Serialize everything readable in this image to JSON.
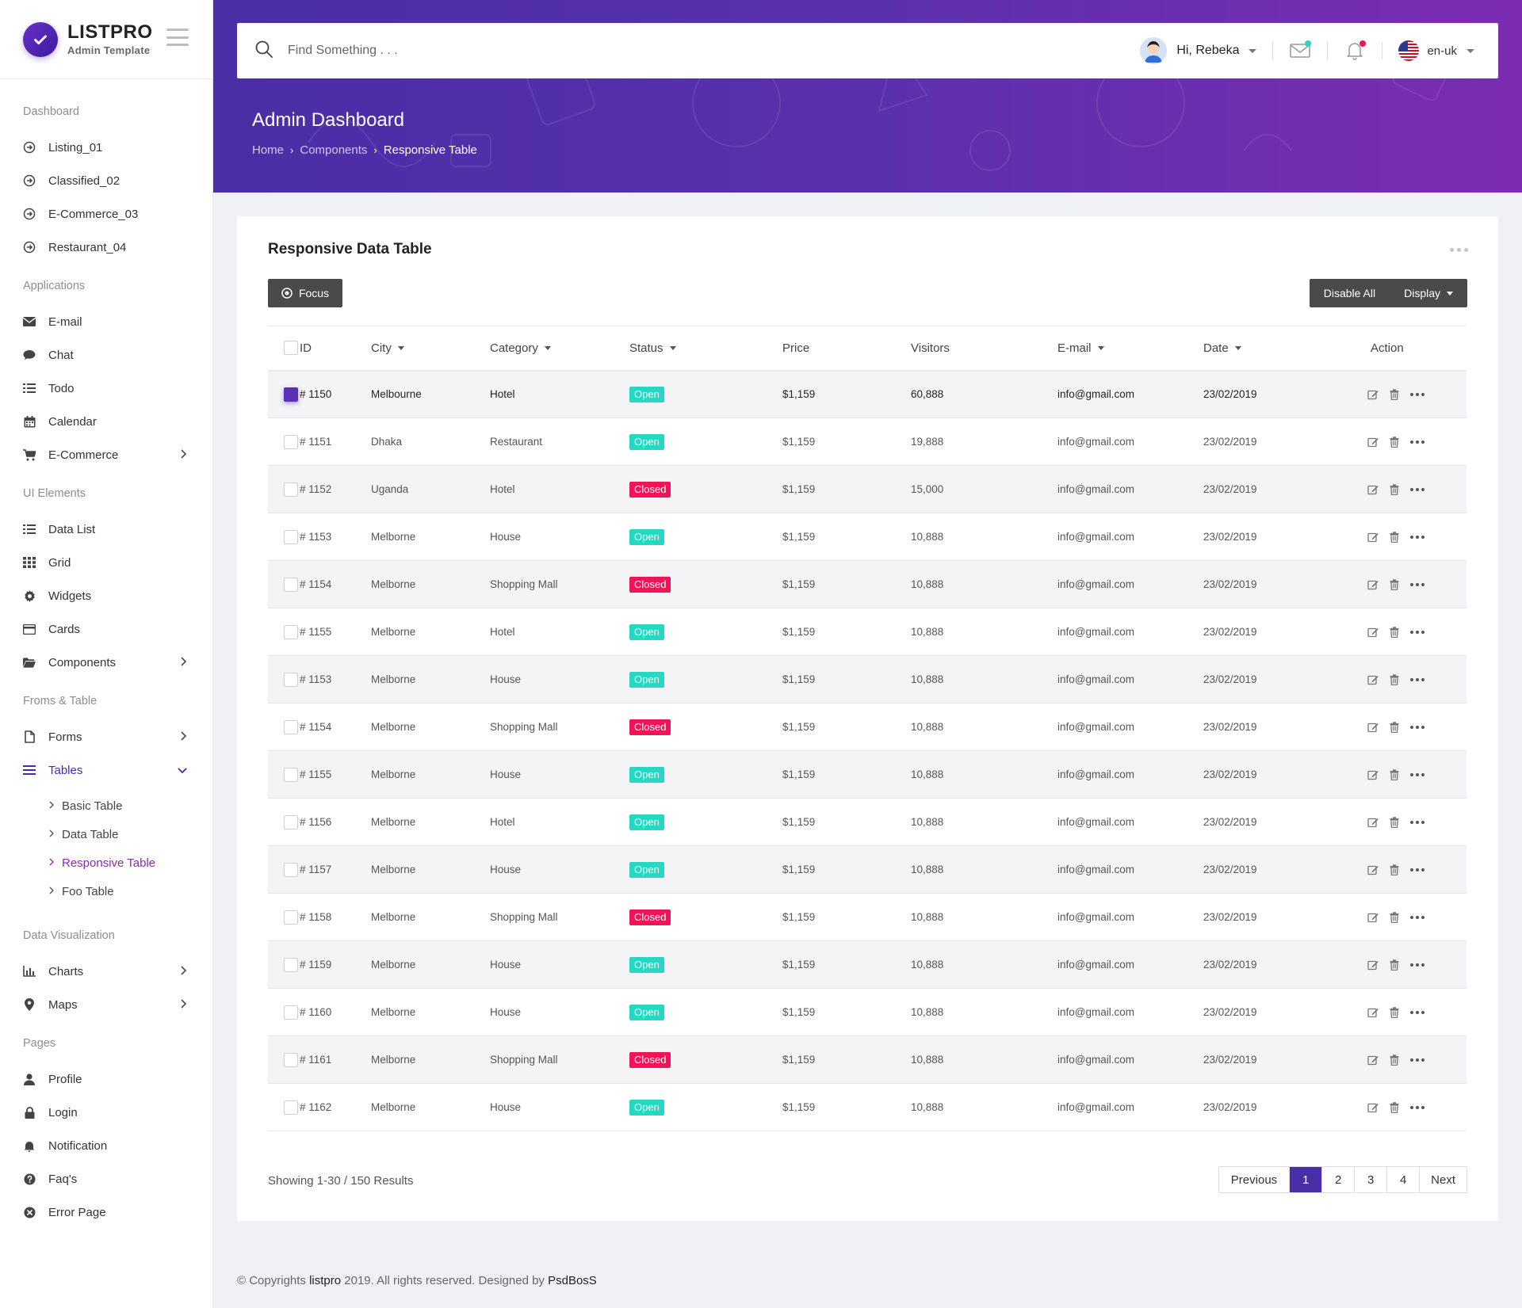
{
  "brand": {
    "name": "LISTPRO",
    "subtitle": "Admin Template"
  },
  "sidebar": {
    "sections": [
      {
        "title": "Dashboard",
        "items": [
          {
            "label": "Listing_01",
            "icon": "arrow-circle-icon"
          },
          {
            "label": "Classified_02",
            "icon": "arrow-circle-icon"
          },
          {
            "label": "E-Commerce_03",
            "icon": "arrow-circle-icon"
          },
          {
            "label": "Restaurant_04",
            "icon": "arrow-circle-icon"
          }
        ]
      },
      {
        "title": "Applications",
        "items": [
          {
            "label": "E-mail",
            "icon": "envelope-icon"
          },
          {
            "label": "Chat",
            "icon": "chat-bubble-icon"
          },
          {
            "label": "Todo",
            "icon": "list-icon"
          },
          {
            "label": "Calendar",
            "icon": "calendar-icon"
          },
          {
            "label": "E-Commerce",
            "icon": "cart-icon",
            "has_children": true
          }
        ]
      },
      {
        "title": "UI Elements",
        "items": [
          {
            "label": "Data List",
            "icon": "list-icon"
          },
          {
            "label": "Grid",
            "icon": "grid-icon"
          },
          {
            "label": "Widgets",
            "icon": "gear-icon"
          },
          {
            "label": "Cards",
            "icon": "card-icon"
          },
          {
            "label": "Components",
            "icon": "folder-icon",
            "has_children": true
          }
        ]
      },
      {
        "title": "Froms & Table",
        "items": [
          {
            "label": "Forms",
            "icon": "file-icon",
            "has_children": true
          },
          {
            "label": "Tables",
            "icon": "menu-icon",
            "has_children": true,
            "expanded": true,
            "active": true,
            "children": [
              "Basic Table",
              "Data Table",
              "Responsive Table",
              "Foo Table"
            ],
            "active_child": "Responsive Table"
          }
        ]
      },
      {
        "title": "Data Visualization",
        "items": [
          {
            "label": "Charts",
            "icon": "bar-chart-icon",
            "has_children": true
          },
          {
            "label": "Maps",
            "icon": "map-pin-icon",
            "has_children": true
          }
        ]
      },
      {
        "title": "Pages",
        "items": [
          {
            "label": "Profile",
            "icon": "user-icon"
          },
          {
            "label": "Login",
            "icon": "lock-icon"
          },
          {
            "label": "Notification",
            "icon": "bell-icon"
          },
          {
            "label": "Faq's",
            "icon": "question-circle-icon"
          },
          {
            "label": "Error Page",
            "icon": "close-circle-icon"
          }
        ]
      }
    ]
  },
  "topbar": {
    "search_placeholder": "Find Something . . .",
    "user_greeting": "Hi, Rebeka",
    "language": "en-uk",
    "mail_dot_color": "#26d7c4",
    "bell_dot_color": "#ef1458"
  },
  "header": {
    "title": "Admin Dashboard",
    "breadcrumb": [
      "Home",
      "Components",
      "Responsive Table"
    ],
    "gradient_start": "#4a2ea6",
    "gradient_end": "#7c2cb2"
  },
  "card": {
    "title": "Responsive Data Table",
    "focus_button": "Focus",
    "disable_all_button": "Disable All",
    "display_button": "Display"
  },
  "table": {
    "columns": [
      "ID",
      "City",
      "Category",
      "Status",
      "Price",
      "Visitors",
      "E-mail",
      "Date",
      "Action"
    ],
    "rows": [
      {
        "id": "# 1150",
        "city": "Melbourne",
        "category": "Hotel",
        "status": "Open",
        "price": "$1,159",
        "visitors": "60,888",
        "email": "info@gmail.com",
        "date": "23/02/2019",
        "checked": true
      },
      {
        "id": "# 1151",
        "city": "Dhaka",
        "category": "Restaurant",
        "status": "Open",
        "price": "$1,159",
        "visitors": "19,888",
        "email": "info@gmail.com",
        "date": "23/02/2019"
      },
      {
        "id": "# 1152",
        "city": "Uganda",
        "category": "Hotel",
        "status": "Closed",
        "price": "$1,159",
        "visitors": "15,000",
        "email": "info@gmail.com",
        "date": "23/02/2019"
      },
      {
        "id": "# 1153",
        "city": "Melborne",
        "category": "House",
        "status": "Open",
        "price": "$1,159",
        "visitors": "10,888",
        "email": "info@gmail.com",
        "date": "23/02/2019"
      },
      {
        "id": "# 1154",
        "city": "Melborne",
        "category": "Shopping Mall",
        "status": "Closed",
        "price": "$1,159",
        "visitors": "10,888",
        "email": "info@gmail.com",
        "date": "23/02/2019"
      },
      {
        "id": "# 1155",
        "city": "Melborne",
        "category": "Hotel",
        "status": "Open",
        "price": "$1,159",
        "visitors": "10,888",
        "email": "info@gmail.com",
        "date": "23/02/2019"
      },
      {
        "id": "# 1153",
        "city": "Melborne",
        "category": "House",
        "status": "Open",
        "price": "$1,159",
        "visitors": "10,888",
        "email": "info@gmail.com",
        "date": "23/02/2019"
      },
      {
        "id": "# 1154",
        "city": "Melborne",
        "category": "Shopping Mall",
        "status": "Closed",
        "price": "$1,159",
        "visitors": "10,888",
        "email": "info@gmail.com",
        "date": "23/02/2019"
      },
      {
        "id": "# 1155",
        "city": "Melborne",
        "category": "House",
        "status": "Open",
        "price": "$1,159",
        "visitors": "10,888",
        "email": "info@gmail.com",
        "date": "23/02/2019"
      },
      {
        "id": "# 1156",
        "city": "Melborne",
        "category": "Hotel",
        "status": "Open",
        "price": "$1,159",
        "visitors": "10,888",
        "email": "info@gmail.com",
        "date": "23/02/2019"
      },
      {
        "id": "# 1157",
        "city": "Melborne",
        "category": "House",
        "status": "Open",
        "price": "$1,159",
        "visitors": "10,888",
        "email": "info@gmail.com",
        "date": "23/02/2019"
      },
      {
        "id": "# 1158",
        "city": "Melborne",
        "category": "Shopping Mall",
        "status": "Closed",
        "price": "$1,159",
        "visitors": "10,888",
        "email": "info@gmail.com",
        "date": "23/02/2019"
      },
      {
        "id": "# 1159",
        "city": "Melborne",
        "category": "House",
        "status": "Open",
        "price": "$1,159",
        "visitors": "10,888",
        "email": "info@gmail.com",
        "date": "23/02/2019"
      },
      {
        "id": "# 1160",
        "city": "Melborne",
        "category": "House",
        "status": "Open",
        "price": "$1,159",
        "visitors": "10,888",
        "email": "info@gmail.com",
        "date": "23/02/2019"
      },
      {
        "id": "# 1161",
        "city": "Melborne",
        "category": "Shopping Mall",
        "status": "Closed",
        "price": "$1,159",
        "visitors": "10,888",
        "email": "info@gmail.com",
        "date": "23/02/2019"
      },
      {
        "id": "# 1162",
        "city": "Melborne",
        "category": "House",
        "status": "Open",
        "price": "$1,159",
        "visitors": "10,888",
        "email": "info@gmail.com",
        "date": "23/02/2019"
      }
    ]
  },
  "pagination": {
    "showing": "Showing 1-30 / 150 Results",
    "previous": "Previous",
    "pages": [
      "1",
      "2",
      "3",
      "4"
    ],
    "active_page": "1",
    "next": "Next"
  },
  "footer": {
    "prefix": "© Copyrights",
    "brand": "listpro",
    "middle": "2019. All rights reserved. Designed by",
    "designer": "PsdBosS"
  },
  "colors": {
    "accent": "#4a2ea6",
    "open": "#26d7c4",
    "closed": "#ef1458",
    "dark_button": "#4a4a4a"
  }
}
